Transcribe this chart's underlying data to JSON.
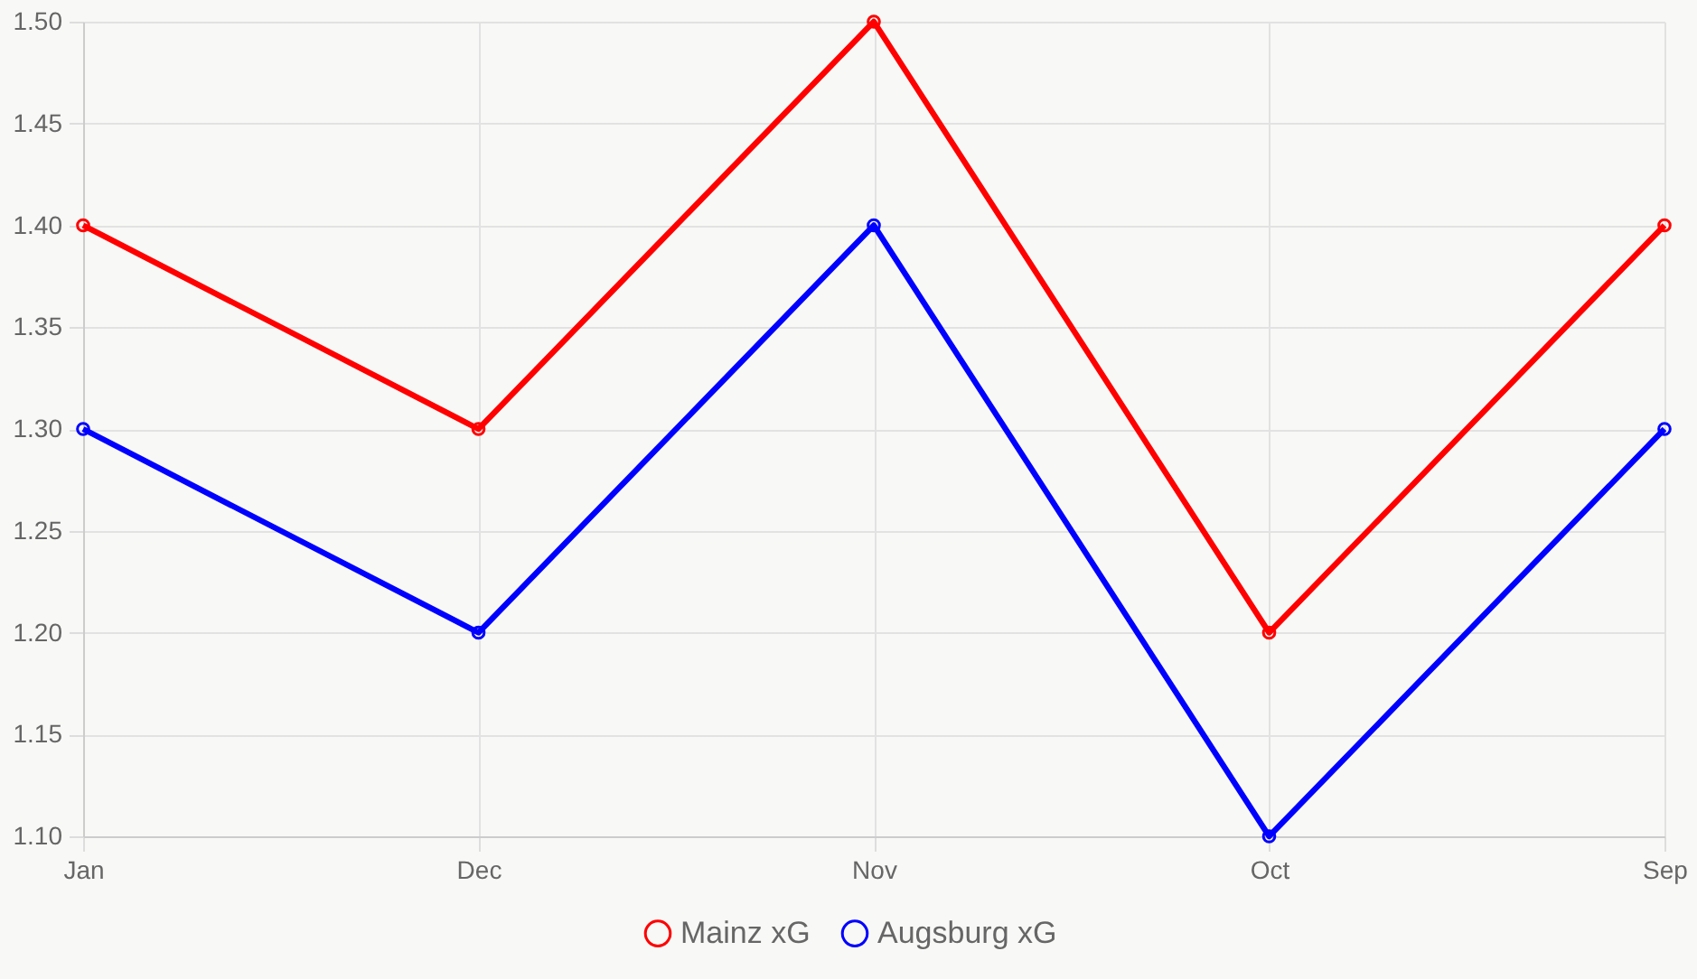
{
  "chart_data": {
    "type": "line",
    "categories": [
      "Jan",
      "Dec",
      "Nov",
      "Oct",
      "Sep"
    ],
    "series": [
      {
        "name": "Mainz xG",
        "color": "#ff0000",
        "values": [
          1.4,
          1.3,
          1.5,
          1.2,
          1.4
        ]
      },
      {
        "name": "Augsburg xG",
        "color": "#0000ff",
        "values": [
          1.3,
          1.2,
          1.4,
          1.1,
          1.3
        ]
      }
    ],
    "ylim": [
      1.1,
      1.5
    ],
    "yticks": [
      {
        "value": 1.1,
        "label": "1.10"
      },
      {
        "value": 1.15,
        "label": "1.15"
      },
      {
        "value": 1.2,
        "label": "1.20"
      },
      {
        "value": 1.25,
        "label": "1.25"
      },
      {
        "value": 1.3,
        "label": "1.30"
      },
      {
        "value": 1.35,
        "label": "1.35"
      },
      {
        "value": 1.4,
        "label": "1.40"
      },
      {
        "value": 1.45,
        "label": "1.45"
      },
      {
        "value": 1.5,
        "label": "1.50"
      }
    ],
    "grid": true,
    "legend": "bottom",
    "marker": "circle",
    "line_style": "solid"
  }
}
